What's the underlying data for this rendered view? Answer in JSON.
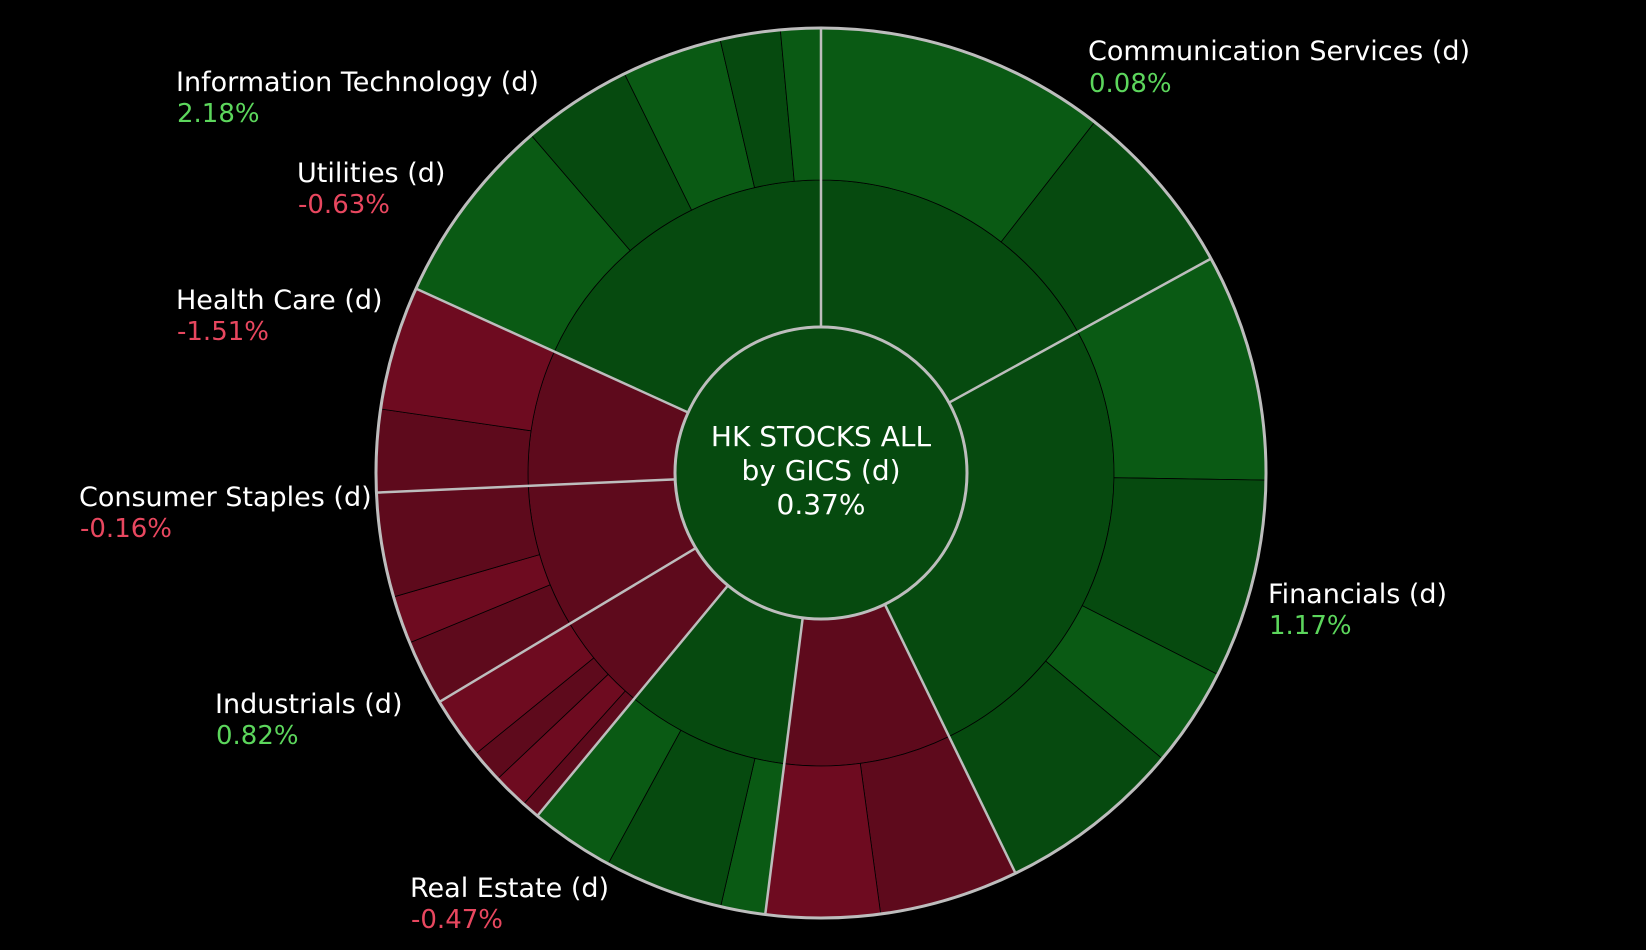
{
  "chart_data": {
    "type": "sunburst",
    "center": {
      "title_line1": "HK STOCKS ALL",
      "title_line2": "by GICS (d)",
      "value": "0.37%"
    },
    "sectors": [
      {
        "name": "Communication Services (d)",
        "change": "0.08%",
        "weight": 0.17,
        "direction": "up"
      },
      {
        "name": "Financials (d)",
        "change": "1.17%",
        "weight": 0.258,
        "direction": "up"
      },
      {
        "name": "Real Estate (d)",
        "change": "-0.47%",
        "weight": 0.092,
        "direction": "down"
      },
      {
        "name": "Industrials (d)",
        "change": "0.82%",
        "weight": 0.09,
        "direction": "up"
      },
      {
        "name": "Consumer Staples (d)",
        "change": "-0.16%",
        "weight": 0.054,
        "direction": "down"
      },
      {
        "name": "Health Care (d)",
        "change": "-1.51%",
        "weight": 0.079,
        "direction": "down"
      },
      {
        "name": "Utilities (d)",
        "change": "-0.63%",
        "weight": 0.075,
        "direction": "down"
      },
      {
        "name": "Information Technology (d)",
        "change": "2.18%",
        "weight": 0.182,
        "direction": "up"
      }
    ],
    "colors": {
      "up": "#0a5a14",
      "up_dark": "#064a0f",
      "down": "#5e0a1c",
      "down_bright": "#6e0b20",
      "label_up": "#5cd65c",
      "label_down": "#e8475f",
      "separator": "#bdbdbd"
    }
  }
}
